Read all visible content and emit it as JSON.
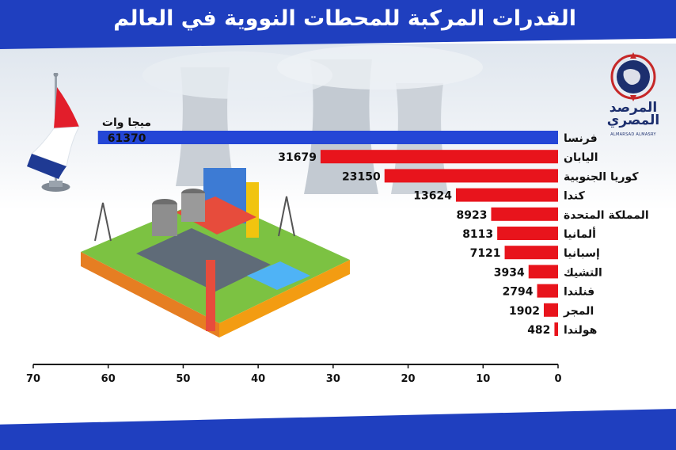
{
  "title": "القدرات المركبة للمحطات النووية في العالم",
  "logo": {
    "name": "المرصد المصري",
    "subtitle": "ALMARSAD ALMASRY"
  },
  "colors": {
    "header": "#1f3fbf",
    "highlight_bar": "#2446d6",
    "bar": "#e8141c"
  },
  "chart_data": {
    "type": "bar",
    "orientation": "horizontal",
    "unit_label": "ميجا وات",
    "categories": [
      "فرنسا",
      "اليابان",
      "كوريا الجنوبية",
      "كندا",
      "المملكة المتحدة",
      "ألمانيا",
      "إسبانيا",
      "التشيك",
      "فنلندا",
      "المجر",
      "هولندا"
    ],
    "values": [
      61370,
      31679,
      23150,
      13624,
      8923,
      8113,
      7121,
      3934,
      2794,
      1902,
      482
    ],
    "value_labels": [
      "61370",
      "31679",
      "23150",
      "13624",
      "8923",
      "8113",
      "7121",
      "3934",
      "2794",
      "1902",
      "482"
    ],
    "x_axis_ticks": [
      "0",
      "10",
      "20",
      "30",
      "40",
      "50",
      "60",
      "70"
    ],
    "xlim": [
      0,
      70000
    ],
    "x_reversed": true,
    "highlight_category": "فرنسا",
    "grid": false,
    "legend": "none"
  }
}
